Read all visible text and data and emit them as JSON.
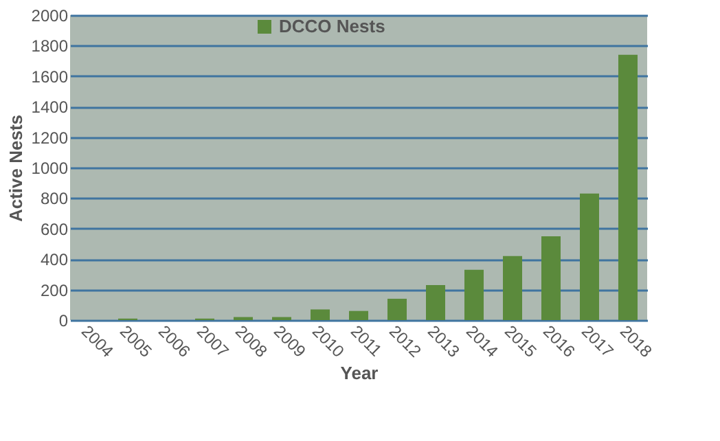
{
  "chart_data": {
    "type": "bar",
    "xlabel": "Year",
    "ylabel": "Active Nests",
    "categories": [
      "2004",
      "2005",
      "2006",
      "2007",
      "2008",
      "2009",
      "2010",
      "2011",
      "2012",
      "2013",
      "2014",
      "2015",
      "2016",
      "2017",
      "2018"
    ],
    "series": [
      {
        "name": "DCCO Nests",
        "color": "#5b8a3c",
        "values": [
          0,
          10,
          0,
          10,
          20,
          20,
          70,
          60,
          140,
          230,
          330,
          420,
          550,
          830,
          1740
        ]
      }
    ],
    "ylim": [
      0,
      2000
    ],
    "yticks": [
      0,
      200,
      400,
      600,
      800,
      1000,
      1200,
      1400,
      1600,
      1800,
      2000
    ],
    "grid": "y",
    "legend": "top"
  }
}
